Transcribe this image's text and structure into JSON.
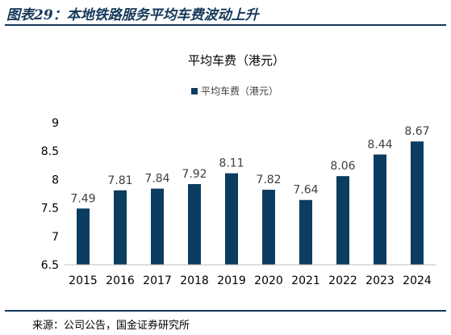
{
  "figure_title": "图表29：本地铁路服务平均车费波动上升",
  "source": "来源：公司公告，国金证券研究所",
  "colors": {
    "bar": "#0d3c61",
    "rule": "#15385b"
  },
  "chart_data": {
    "type": "bar",
    "title": "平均车费（港元）",
    "categories": [
      "2015",
      "2016",
      "2017",
      "2018",
      "2019",
      "2020",
      "2021",
      "2022",
      "2023",
      "2024"
    ],
    "series": [
      {
        "name": "平均车费（港元）",
        "values": [
          7.49,
          7.81,
          7.84,
          7.92,
          8.11,
          7.82,
          7.64,
          8.06,
          8.44,
          8.67
        ]
      }
    ],
    "data_labels": [
      "7.49",
      "7.81",
      "7.84",
      "7.92",
      "8.11",
      "7.82",
      "7.64",
      "8.06",
      "8.44",
      "8.67"
    ],
    "ylim": [
      6.5,
      9
    ],
    "yticks": [
      6.5,
      7,
      7.5,
      8,
      8.5,
      9
    ],
    "ytick_labels": [
      "6.5",
      "7",
      "7.5",
      "8",
      "8.5",
      "9"
    ],
    "legend": "top-center",
    "grid": false
  }
}
